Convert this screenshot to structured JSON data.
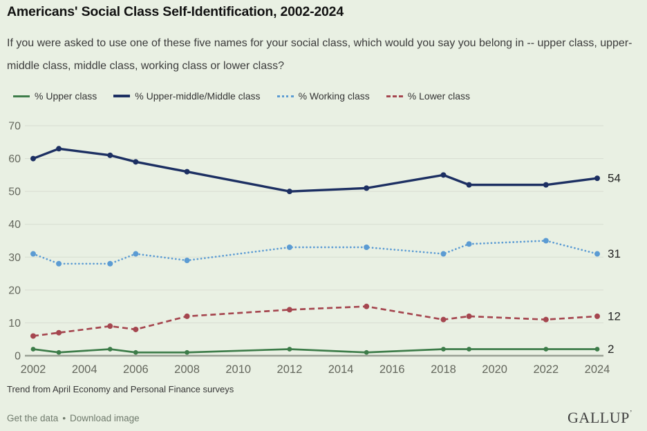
{
  "header": {
    "title": "Americans' Social Class Self-Identification, 2002-2024",
    "subtitle": "If you were asked to use one of these five names for your social class, which would you say you belong in -- upper class, upper-middle class, middle class, working class or lower class?"
  },
  "legend": {
    "items": [
      {
        "label": "% Upper class",
        "color": "#3d7c49",
        "style": "solid"
      },
      {
        "label": "% Upper-middle/Middle class",
        "color": "#1c2f62",
        "style": "solid"
      },
      {
        "label": "% Working class",
        "color": "#5b9bd3",
        "style": "dotted"
      },
      {
        "label": "% Lower class",
        "color": "#a5464f",
        "style": "dashed"
      }
    ]
  },
  "chart_data": {
    "type": "line",
    "x": [
      2002,
      2003,
      2005,
      2006,
      2008,
      2012,
      2015,
      2018,
      2019,
      2022,
      2024
    ],
    "series": [
      {
        "id": "working",
        "name": "% Working class",
        "color": "#5b9bd3",
        "dash": "dotted",
        "values": [
          31,
          28,
          28,
          31,
          29,
          33,
          33,
          31,
          34,
          35,
          31
        ],
        "end_label": "31"
      },
      {
        "id": "lower",
        "name": "% Lower class",
        "color": "#a5464f",
        "dash": "dashed",
        "values": [
          6,
          7,
          9,
          8,
          12,
          14,
          15,
          11,
          12,
          11,
          12
        ],
        "end_label": "12"
      },
      {
        "id": "middle",
        "name": "% Upper-middle/Middle class",
        "color": "#1c2f62",
        "dash": "solid",
        "values": [
          60,
          63,
          61,
          59,
          56,
          50,
          51,
          55,
          52,
          52,
          54
        ],
        "end_label": "54"
      },
      {
        "id": "upper",
        "name": "% Upper class",
        "color": "#3d7c49",
        "dash": "solid",
        "values": [
          2,
          1,
          2,
          1,
          1,
          2,
          1,
          2,
          2,
          2,
          2
        ],
        "end_label": "2"
      }
    ],
    "x_ticks": [
      "2002",
      "2004",
      "2006",
      "2008",
      "2010",
      "2012",
      "2014",
      "2016",
      "2018",
      "2020",
      "2022",
      "2024"
    ],
    "y_ticks": [
      0,
      10,
      20,
      30,
      40,
      50,
      60,
      70
    ],
    "xlim": [
      2002,
      2024
    ],
    "ylim": [
      0,
      70
    ],
    "grid": true,
    "legend_position": "top",
    "colors": {
      "background": "#e9f0e3",
      "gridline": "#d8ddd2",
      "axis_line": "#99a094",
      "tick_label": "#63665c",
      "end_label": "#222222"
    }
  },
  "footnote": {
    "text": "Trend from April Economy and Personal Finance surveys"
  },
  "footer": {
    "links": [
      {
        "label": "Get the data"
      },
      {
        "label": "Download image"
      }
    ],
    "separator": "•",
    "logo": "GALLUP",
    "logo_mark": "’"
  }
}
